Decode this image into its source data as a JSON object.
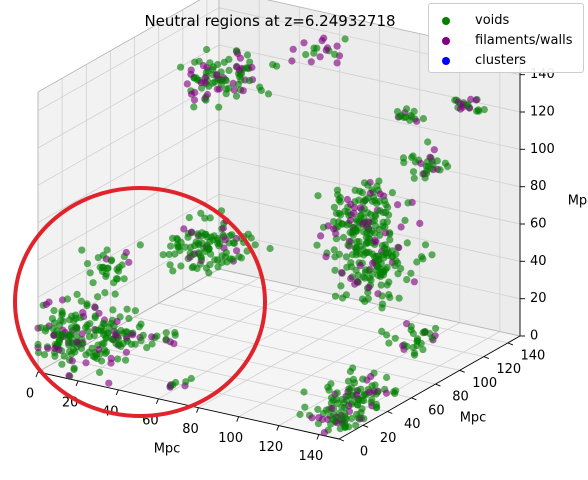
{
  "chart_data": {
    "type": "scatter",
    "projection": "3d",
    "title": "Neutral regions at z=6.24932718",
    "xlabel": "Mpc",
    "ylabel": "Mpc",
    "zlabel": "Mpc",
    "xlim": [
      0,
      150
    ],
    "ylim": [
      0,
      150
    ],
    "zlim": [
      0,
      150
    ],
    "xticks": [
      "0",
      "20",
      "40",
      "60",
      "80",
      "100",
      "120",
      "140"
    ],
    "yticks": [
      "0",
      "20",
      "40",
      "60",
      "80",
      "100",
      "120",
      "140"
    ],
    "zticks": [
      "0",
      "20",
      "40",
      "60",
      "80",
      "100",
      "120",
      "140"
    ],
    "grid": true,
    "legend_position": "top-right",
    "series": [
      {
        "name": "voids",
        "color": "#008000",
        "kind": "voids"
      },
      {
        "name": "filaments/walls",
        "color": "#800080",
        "kind": "filaments"
      },
      {
        "name": "clusters",
        "color": "#0000ff",
        "kind": "clusters"
      }
    ],
    "clumps": [
      {
        "x": 12,
        "y": 10,
        "z": 18,
        "count": 150,
        "spread": 11,
        "filament_fraction": 0.2
      },
      {
        "x": 24,
        "y": 24,
        "z": 18,
        "count": 45,
        "spread": 7,
        "filament_fraction": 0.25
      },
      {
        "x": 18,
        "y": 30,
        "z": 48,
        "count": 30,
        "spread": 6,
        "filament_fraction": 0.1
      },
      {
        "x": 38,
        "y": 78,
        "z": 48,
        "count": 110,
        "spread": 9,
        "filament_fraction": 0.15
      },
      {
        "x": 42,
        "y": 30,
        "z": 18,
        "count": 12,
        "spread": 4,
        "filament_fraction": 0.3
      },
      {
        "x": 10,
        "y": 130,
        "z": 110,
        "count": 55,
        "spread": 9,
        "filament_fraction": 0.3
      },
      {
        "x": 22,
        "y": 125,
        "z": 120,
        "count": 40,
        "spread": 8,
        "filament_fraction": 0.35
      },
      {
        "x": 62,
        "y": 130,
        "z": 140,
        "count": 18,
        "spread": 4,
        "filament_fraction": 0.35
      },
      {
        "x": 95,
        "y": 115,
        "z": 70,
        "count": 65,
        "spread": 8,
        "filament_fraction": 0.2
      },
      {
        "x": 100,
        "y": 100,
        "z": 60,
        "count": 55,
        "spread": 8,
        "filament_fraction": 0.25
      },
      {
        "x": 105,
        "y": 110,
        "z": 45,
        "count": 75,
        "spread": 8,
        "filament_fraction": 0.2
      },
      {
        "x": 110,
        "y": 90,
        "z": 40,
        "count": 40,
        "spread": 6,
        "filament_fraction": 0.15
      },
      {
        "x": 88,
        "y": 120,
        "z": 55,
        "count": 30,
        "spread": 6,
        "filament_fraction": 0.2
      },
      {
        "x": 120,
        "y": 120,
        "z": 95,
        "count": 30,
        "spread": 5,
        "filament_fraction": 0.15
      },
      {
        "x": 100,
        "y": 140,
        "z": 110,
        "count": 15,
        "spread": 3,
        "filament_fraction": 0.1
      },
      {
        "x": 125,
        "y": 145,
        "z": 120,
        "count": 20,
        "spread": 4,
        "filament_fraction": 0.2
      },
      {
        "x": 140,
        "y": 80,
        "z": 20,
        "count": 30,
        "spread": 6,
        "filament_fraction": 0.15
      },
      {
        "x": 135,
        "y": 40,
        "z": 5,
        "count": 75,
        "spread": 8,
        "filament_fraction": 0.25
      },
      {
        "x": 140,
        "y": 15,
        "z": 3,
        "count": 45,
        "spread": 6,
        "filament_fraction": 0.3
      },
      {
        "x": 60,
        "y": 15,
        "z": 3,
        "count": 8,
        "spread": 3,
        "filament_fraction": 0.35
      }
    ]
  }
}
